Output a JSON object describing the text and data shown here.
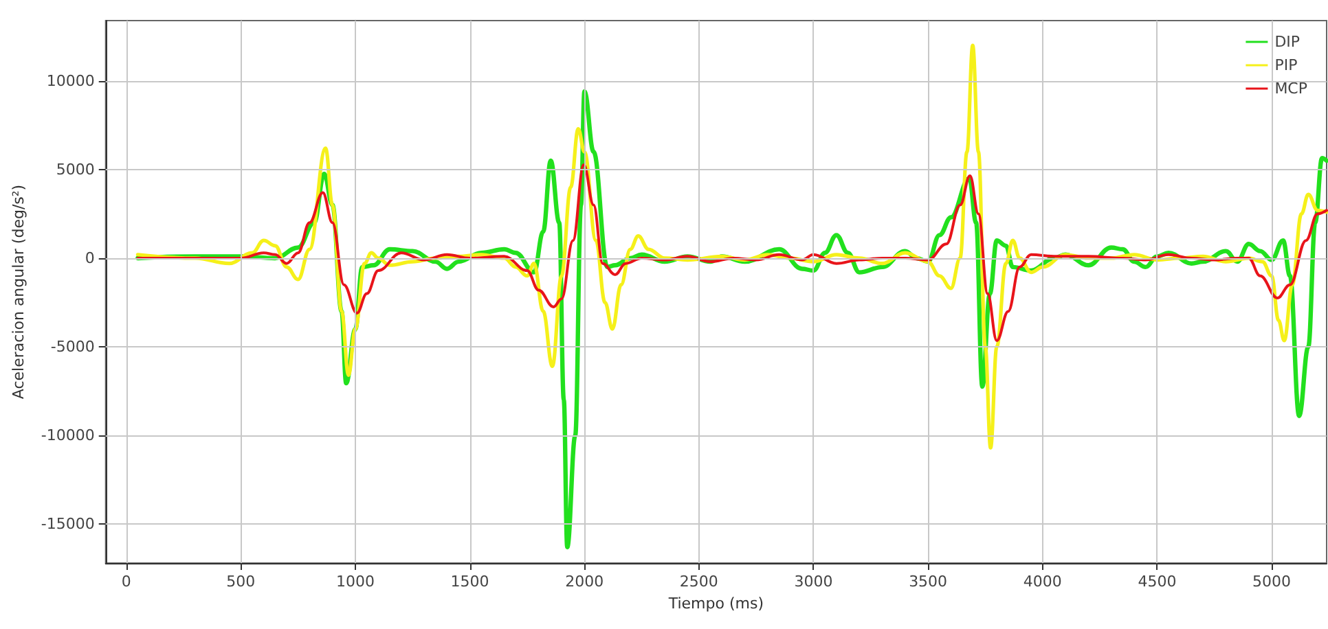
{
  "chart_data": {
    "type": "line",
    "xlabel": "Tiempo (ms)",
    "ylabel": "Aceleracion angular (deg/s²)",
    "xlim": [
      -90,
      5240
    ],
    "xticks": [
      0,
      500,
      1000,
      1500,
      2000,
      2500,
      3000,
      3500,
      4000,
      4500,
      5000
    ],
    "ylim": [
      -17200,
      13400
    ],
    "yticks": [
      -15000,
      -10000,
      -5000,
      0,
      5000,
      10000
    ],
    "grid": true,
    "legend": "top right",
    "marker": "none",
    "line_style": "solid",
    "series": [
      {
        "name": "DIP",
        "color": "#22e01e",
        "x": [
          50,
          300,
          500,
          650,
          750,
          820,
          864,
          900,
          940,
          960,
          1000,
          1030,
          1080,
          1150,
          1250,
          1350,
          1400,
          1450,
          1550,
          1650,
          1700,
          1780,
          1820,
          1853,
          1890,
          1910,
          1925,
          1960,
          1985,
          2000,
          2040,
          2100,
          2134,
          2200,
          2250,
          2350,
          2450,
          2550,
          2600,
          2700,
          2850,
          2950,
          3000,
          3050,
          3100,
          3150,
          3200,
          3300,
          3400,
          3450,
          3500,
          3550,
          3600,
          3680,
          3710,
          3737,
          3770,
          3800,
          3840,
          3870,
          3950,
          4050,
          4100,
          4200,
          4300,
          4350,
          4400,
          4450,
          4500,
          4550,
          4650,
          4700,
          4800,
          4850,
          4900,
          4950,
          5000,
          5050,
          5080,
          5120,
          5160,
          5190,
          5220,
          5240
        ],
        "values": [
          0,
          100,
          100,
          0,
          600,
          2000,
          4750,
          3000,
          -3000,
          -7050,
          -4000,
          -500,
          -400,
          500,
          400,
          -200,
          -600,
          -200,
          300,
          500,
          300,
          -800,
          1500,
          5500,
          2000,
          -8000,
          -16300,
          -10000,
          3000,
          9400,
          6000,
          -500,
          -400,
          0,
          200,
          -200,
          100,
          -200,
          100,
          -200,
          500,
          -600,
          -700,
          300,
          1300,
          300,
          -800,
          -500,
          400,
          0,
          -200,
          1300,
          2300,
          4500,
          2000,
          -7250,
          -2000,
          1000,
          700,
          -500,
          -700,
          0,
          200,
          -400,
          600,
          500,
          -200,
          -500,
          100,
          300,
          -300,
          -200,
          400,
          -200,
          800,
          400,
          -100,
          1000,
          -1000,
          -8900,
          -5000,
          2000,
          5650,
          5500
        ]
      },
      {
        "name": "PIP",
        "color": "#f5f01a",
        "x": [
          50,
          300,
          450,
          550,
          600,
          650,
          700,
          750,
          800,
          870,
          900,
          940,
          970,
          1000,
          1040,
          1070,
          1100,
          1150,
          1250,
          1350,
          1450,
          1550,
          1650,
          1700,
          1750,
          1780,
          1820,
          1860,
          1900,
          1940,
          1973,
          2000,
          2050,
          2090,
          2122,
          2160,
          2200,
          2235,
          2280,
          2350,
          2450,
          2600,
          2700,
          2800,
          2900,
          3000,
          3100,
          3200,
          3300,
          3400,
          3500,
          3550,
          3600,
          3640,
          3670,
          3695,
          3720,
          3750,
          3773,
          3800,
          3840,
          3870,
          3900,
          3950,
          4000,
          4100,
          4200,
          4300,
          4400,
          4500,
          4600,
          4700,
          4800,
          4900,
          4960,
          5000,
          5030,
          5055,
          5090,
          5130,
          5160,
          5200,
          5240
        ],
        "values": [
          200,
          0,
          -300,
          300,
          1000,
          700,
          -500,
          -1200,
          500,
          6200,
          3000,
          -3000,
          -6600,
          -4000,
          -300,
          300,
          0,
          -400,
          -200,
          0,
          100,
          200,
          0,
          -500,
          -1000,
          -300,
          -3000,
          -6100,
          -1000,
          4000,
          7300,
          6000,
          1000,
          -2500,
          -4000,
          -1500,
          500,
          1250,
          500,
          0,
          -100,
          100,
          -100,
          200,
          0,
          -200,
          200,
          0,
          -300,
          300,
          -200,
          -1000,
          -1700,
          0,
          6000,
          12000,
          6000,
          -5000,
          -10700,
          -5000,
          -300,
          1000,
          0,
          -800,
          -500,
          200,
          0,
          0,
          200,
          -100,
          0,
          100,
          -200,
          0,
          -200,
          -1000,
          -3500,
          -4650,
          -1500,
          2500,
          3600,
          2700,
          2600
        ]
      },
      {
        "name": "MCP",
        "color": "#e8141a",
        "x": [
          50,
          300,
          500,
          600,
          650,
          700,
          750,
          800,
          858,
          900,
          950,
          1007,
          1050,
          1100,
          1200,
          1300,
          1400,
          1500,
          1650,
          1750,
          1800,
          1865,
          1900,
          1950,
          1997,
          2040,
          2080,
          2134,
          2180,
          2250,
          2350,
          2450,
          2550,
          2650,
          2750,
          2850,
          2950,
          3000,
          3100,
          3200,
          3300,
          3400,
          3500,
          3580,
          3640,
          3683,
          3720,
          3760,
          3800,
          3850,
          3900,
          3950,
          4050,
          4200,
          4350,
          4450,
          4550,
          4650,
          4750,
          4850,
          4900,
          4950,
          5025,
          5080,
          5150,
          5200,
          5240
        ],
        "values": [
          0,
          0,
          0,
          300,
          200,
          -300,
          300,
          2000,
          3700,
          2000,
          -1500,
          -3100,
          -2000,
          -700,
          300,
          -100,
          200,
          0,
          100,
          -700,
          -1800,
          -2750,
          -2300,
          1000,
          5270,
          3000,
          -300,
          -930,
          -300,
          0,
          -100,
          100,
          -200,
          0,
          -100,
          200,
          -100,
          200,
          -300,
          -100,
          0,
          0,
          -100,
          800,
          3000,
          4650,
          2500,
          -2000,
          -4650,
          -3000,
          -500,
          200,
          100,
          100,
          0,
          -100,
          200,
          0,
          -100,
          0,
          0,
          -1000,
          -2250,
          -1500,
          1000,
          2500,
          2700
        ]
      }
    ]
  }
}
